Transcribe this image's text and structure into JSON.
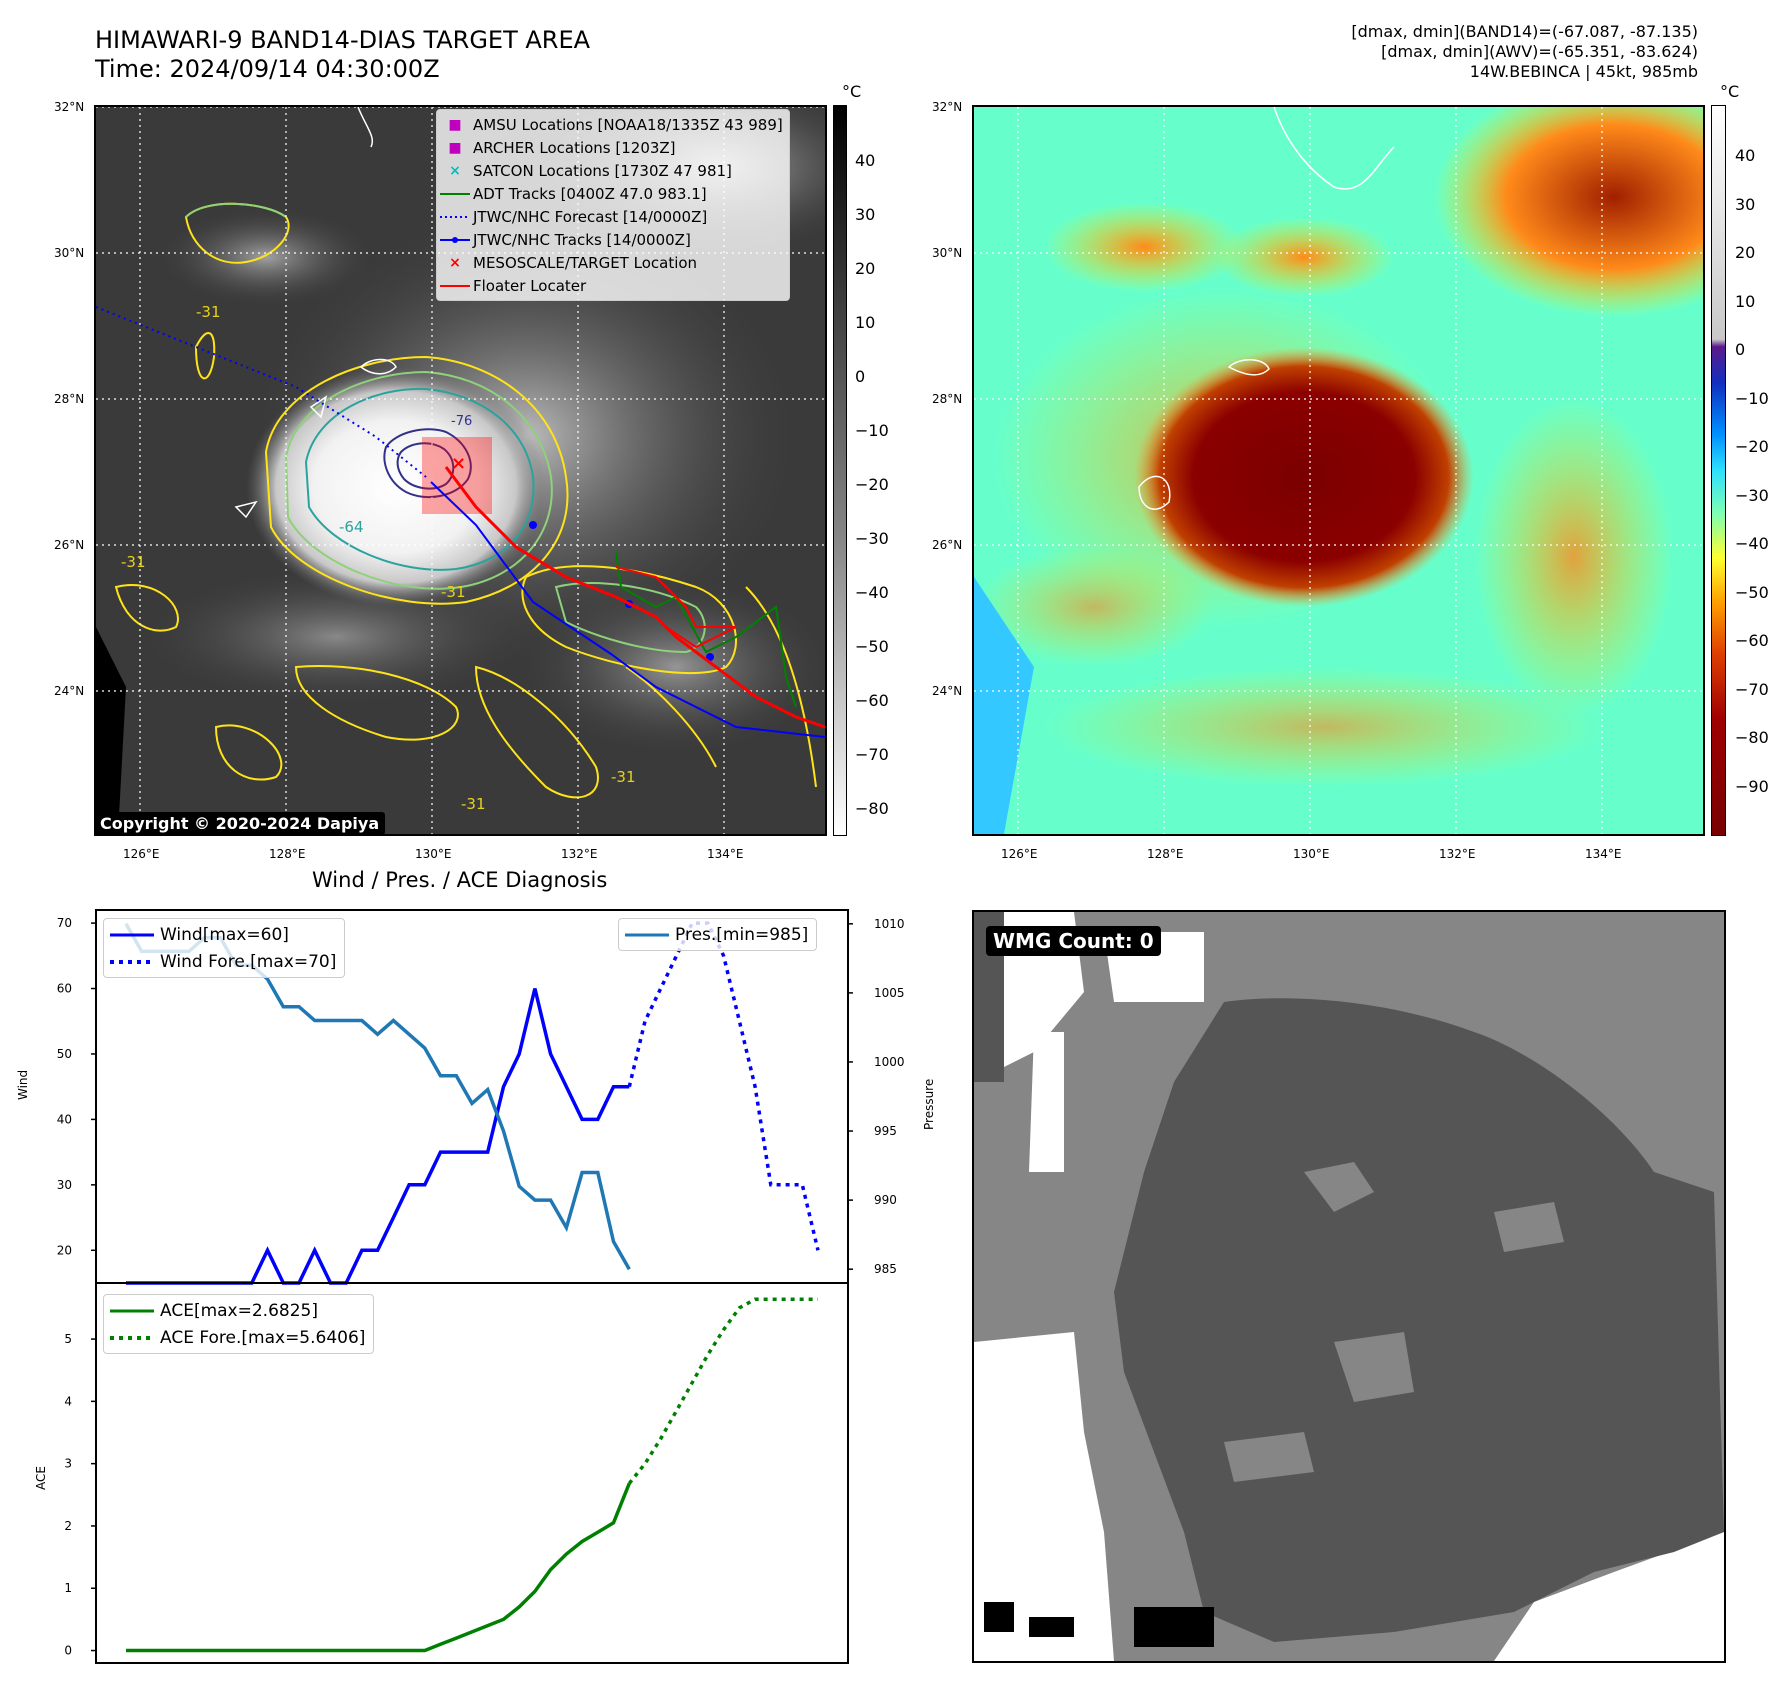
{
  "header": {
    "title_line1": "HIMAWARI-9 BAND14-DIAS TARGET AREA",
    "title_line2": "Time: 2024/09/14 04:30:00Z",
    "right_line1": "[dmax, dmin](BAND14)=(-67.087, -87.135)",
    "right_line2": "[dmax, dmin](AWV)=(-65.351, -83.624)",
    "right_line3": "14W.BEBINCA | 45kt, 985mb"
  },
  "map_axes": {
    "lat_labels": [
      "32°N",
      "30°N",
      "28°N",
      "26°N",
      "24°N"
    ],
    "lon_labels": [
      "126°E",
      "128°E",
      "130°E",
      "132°E",
      "134°E"
    ]
  },
  "left_map": {
    "legend": [
      {
        "label": "AMSU Locations [NOAA18/1335Z 43 989]",
        "marker": "■",
        "color": "#bf00bf"
      },
      {
        "label": "ARCHER Locations [1203Z]",
        "marker": "■",
        "color": "#bf00bf"
      },
      {
        "label": "SATCON Locations [1730Z 47 981]",
        "marker": "×",
        "color": "#00bfbf"
      },
      {
        "label": "ADT Tracks [0400Z 47.0 983.1]",
        "marker": "line",
        "color": "#008000"
      },
      {
        "label": "JTWC/NHC Forecast [14/0000Z]",
        "marker": "dotted",
        "color": "#0000ff"
      },
      {
        "label": "JTWC/NHC Tracks [14/0000Z]",
        "marker": "line-dot",
        "color": "#0000ff"
      },
      {
        "label": "MESOSCALE/TARGET Location",
        "marker": "×",
        "color": "#ff0000"
      },
      {
        "label": "Floater Locater",
        "marker": "line",
        "color": "#ff0000"
      }
    ],
    "contour_labels": [
      "-31",
      "-31",
      "-64",
      "-76",
      "-31",
      "-31",
      "-31"
    ],
    "copyright": "Copyright © 2020-2024 Dapiya",
    "colorbar": {
      "unit": "°C",
      "ticks": [
        "40",
        "30",
        "20",
        "10",
        "0",
        "−10",
        "−20",
        "−30",
        "−40",
        "−50",
        "−60",
        "−70",
        "−80"
      ]
    }
  },
  "right_map": {
    "colorbar": {
      "unit": "°C",
      "ticks": [
        "40",
        "30",
        "20",
        "10",
        "0",
        "−10",
        "−20",
        "−30",
        "−40",
        "−50",
        "−60",
        "−70",
        "−80",
        "−90"
      ]
    }
  },
  "diagnosis": {
    "title": "Wind / Pres. / ACE Diagnosis",
    "wind_ylabel": "Wind",
    "pres_ylabel": "Pressure",
    "ace_ylabel": "ACE",
    "legend_wind": "Wind[max=60]",
    "legend_wind_fore": "Wind Fore.[max=70]",
    "legend_pres": "Pres.[min=985]",
    "legend_ace": "ACE[max=2.6825]",
    "legend_ace_fore": "ACE Fore.[max=5.6406]"
  },
  "wmg": {
    "label": "WMG Count: 0"
  },
  "chart_data": [
    {
      "type": "line",
      "title": "Wind / Pres. / ACE Diagnosis",
      "ylabel": "Wind",
      "ylim": [
        15,
        72
      ],
      "y_ticks": [
        20,
        30,
        40,
        50,
        60,
        70
      ],
      "series": [
        {
          "name": "Wind[max=60]",
          "color": "#0000ff",
          "style": "solid",
          "x": [
            0,
            1,
            2,
            3,
            4,
            5,
            6,
            7,
            8,
            9,
            10,
            11,
            12,
            13,
            14,
            15,
            16,
            17,
            18,
            19,
            20,
            21,
            22,
            23,
            24,
            25,
            26,
            27,
            28,
            29,
            30,
            31,
            32
          ],
          "values": [
            15,
            15,
            15,
            15,
            15,
            15,
            15,
            15,
            15,
            20,
            15,
            15,
            20,
            15,
            15,
            20,
            20,
            25,
            30,
            30,
            35,
            35,
            35,
            35,
            45,
            50,
            60,
            50,
            45,
            40,
            40,
            45,
            45
          ]
        },
        {
          "name": "Wind Fore.[max=70]",
          "color": "#0000ff",
          "style": "dotted",
          "x": [
            32,
            33,
            34,
            35,
            36,
            37,
            38,
            39,
            40,
            41,
            42,
            43,
            44
          ],
          "values": [
            45,
            55,
            60,
            65,
            70,
            70,
            65,
            55,
            45,
            30,
            30,
            30,
            20
          ]
        }
      ]
    },
    {
      "type": "line",
      "ylabel": "Pressure",
      "ylim": [
        984,
        1011
      ],
      "y_ticks": [
        985,
        990,
        995,
        1000,
        1005,
        1010
      ],
      "series": [
        {
          "name": "Pres.[min=985]",
          "color": "#1f77b4",
          "style": "solid",
          "x": [
            0,
            1,
            2,
            3,
            4,
            5,
            6,
            7,
            8,
            9,
            10,
            11,
            12,
            13,
            14,
            15,
            16,
            17,
            18,
            19,
            20,
            21,
            22,
            23,
            24,
            25,
            26,
            27,
            28,
            29,
            30,
            31,
            32
          ],
          "values": [
            1010,
            1008,
            1008,
            1008,
            1008,
            1009,
            1009,
            1007,
            1007,
            1006,
            1004,
            1004,
            1003,
            1003,
            1003,
            1003,
            1002,
            1003,
            1002,
            1001,
            999,
            999,
            997,
            998,
            995,
            991,
            990,
            990,
            988,
            992,
            992,
            987,
            985
          ]
        }
      ]
    },
    {
      "type": "line",
      "ylabel": "ACE",
      "ylim": [
        -0.2,
        5.9
      ],
      "y_ticks": [
        0,
        1,
        2,
        3,
        4,
        5
      ],
      "series": [
        {
          "name": "ACE[max=2.6825]",
          "color": "#008000",
          "style": "solid",
          "x": [
            0,
            5,
            10,
            15,
            18,
            19,
            20,
            21,
            22,
            23,
            24,
            25,
            26,
            27,
            28,
            29,
            30,
            31,
            32
          ],
          "values": [
            0,
            0,
            0,
            0,
            0,
            0,
            0.1,
            0.2,
            0.3,
            0.4,
            0.5,
            0.7,
            0.95,
            1.3,
            1.55,
            1.75,
            1.9,
            2.05,
            2.6825
          ]
        },
        {
          "name": "ACE Fore.[max=5.6406]",
          "color": "#008000",
          "style": "dotted",
          "x": [
            32,
            33,
            34,
            35,
            36,
            37,
            38,
            39,
            40,
            41,
            42,
            43,
            44
          ],
          "values": [
            2.6825,
            3.0,
            3.4,
            3.85,
            4.3,
            4.75,
            5.15,
            5.5,
            5.6406,
            5.6406,
            5.6406,
            5.6406,
            5.6406
          ]
        }
      ]
    }
  ]
}
